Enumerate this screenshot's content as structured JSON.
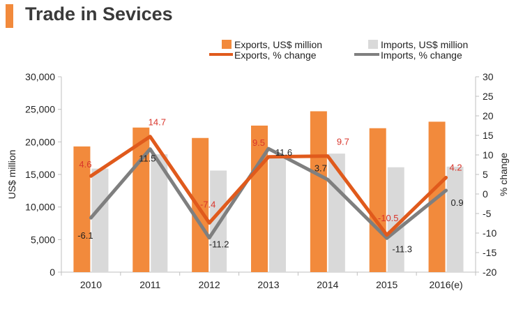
{
  "header": {
    "title": "Trade in Sevices"
  },
  "colors": {
    "exports_bar": "#f28a3c",
    "imports_bar": "#d9d9d9",
    "exports_line": "#e05a1c",
    "imports_line": "#7f7f7f",
    "exports_label": "#d9352b",
    "imports_label": "#222222"
  },
  "chart_data": {
    "type": "bar",
    "title": "Trade in Sevices",
    "categories": [
      "2010",
      "2011",
      "2012",
      "2013",
      "2014",
      "2015",
      "2016(e)"
    ],
    "series": [
      {
        "name": "Exports, US$ million",
        "type": "bar",
        "axis": "left",
        "values": [
          19300,
          22200,
          20600,
          22500,
          24700,
          22100,
          23100
        ]
      },
      {
        "name": "Imports, US$ million",
        "type": "bar",
        "axis": "left",
        "values": [
          15900,
          18100,
          15600,
          17500,
          18200,
          16100,
          16200
        ]
      },
      {
        "name": "Exports, % change",
        "type": "line",
        "axis": "right",
        "values": [
          4.6,
          14.7,
          -7.4,
          9.5,
          9.7,
          -10.5,
          4.2
        ],
        "labels": [
          "4.6",
          "14.7",
          "-7.4",
          "9.5",
          "9.7",
          "-10.5",
          "4.2"
        ]
      },
      {
        "name": "Imports, % change",
        "type": "line",
        "axis": "right",
        "values": [
          -6.1,
          11.5,
          -11.2,
          11.6,
          3.7,
          -11.3,
          0.9
        ],
        "labels": [
          "-6.1",
          "11.5",
          "-11.2",
          "11.6",
          "3.7",
          "-11.3",
          "0.9"
        ]
      }
    ],
    "ylabel": "US$ million",
    "y2label": "% change",
    "ylim": [
      0,
      30000
    ],
    "y2lim": [
      -20,
      30
    ],
    "yticks": [
      "0",
      "5,000",
      "10,000",
      "15,000",
      "20,000",
      "25,000",
      "30,000"
    ],
    "y2ticks": [
      "-20",
      "-15",
      "-10",
      "-5",
      "0",
      "5",
      "10",
      "15",
      "20",
      "25",
      "30"
    ],
    "legend_position": "top-right",
    "grid": false
  }
}
